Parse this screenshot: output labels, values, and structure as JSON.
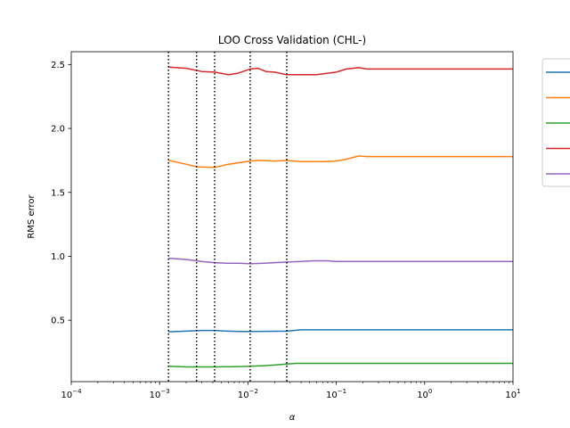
{
  "chart_data": {
    "type": "line",
    "title": "LOO Cross Validation (CHL-)",
    "xlabel": "α",
    "ylabel": "RMS error",
    "xscale": "log",
    "xlim": [
      0.0001,
      10
    ],
    "ylim": [
      0.02,
      2.6
    ],
    "x_ticks": [
      {
        "value": 0.0001,
        "base": "10",
        "exp": "−4"
      },
      {
        "value": 0.001,
        "base": "10",
        "exp": "−3"
      },
      {
        "value": 0.01,
        "base": "10",
        "exp": "−2"
      },
      {
        "value": 0.1,
        "base": "10",
        "exp": "−1"
      },
      {
        "value": 1,
        "base": "10",
        "exp": "0"
      },
      {
        "value": 10,
        "base": "10",
        "exp": "1"
      }
    ],
    "y_ticks": [
      {
        "value": 0.5,
        "label": "0.5"
      },
      {
        "value": 1.0,
        "label": "1.0"
      },
      {
        "value": 1.5,
        "label": "1.5"
      },
      {
        "value": 2.0,
        "label": "2.0"
      },
      {
        "value": 2.5,
        "label": "2.5"
      }
    ],
    "grid": false,
    "legend_position": "outside-right",
    "vlines": [
      0.00126,
      0.00262,
      0.0042,
      0.0106,
      0.0275
    ],
    "series": [
      {
        "color": "#1f77b4",
        "x": [
          0.00126,
          0.002,
          0.003,
          0.0042,
          0.006,
          0.008,
          0.0106,
          0.015,
          0.0275,
          0.04,
          0.1,
          0.5,
          10
        ],
        "y": [
          0.41,
          0.415,
          0.42,
          0.42,
          0.415,
          0.412,
          0.412,
          0.413,
          0.415,
          0.425,
          0.425,
          0.425,
          0.425
        ]
      },
      {
        "color": "#ff7f0e",
        "x": [
          0.00126,
          0.002,
          0.00262,
          0.0042,
          0.006,
          0.0106,
          0.013,
          0.02,
          0.0275,
          0.04,
          0.07,
          0.1,
          0.13,
          0.18,
          0.22,
          0.5,
          10
        ],
        "y": [
          1.75,
          1.72,
          1.7,
          1.695,
          1.72,
          1.745,
          1.75,
          1.745,
          1.75,
          1.74,
          1.74,
          1.745,
          1.76,
          1.785,
          1.78,
          1.78,
          1.78
        ]
      },
      {
        "color": "#2ca02c",
        "x": [
          0.00126,
          0.002,
          0.0042,
          0.008,
          0.0106,
          0.015,
          0.02,
          0.0275,
          0.035,
          0.04,
          0.1,
          1,
          10
        ],
        "y": [
          0.14,
          0.135,
          0.135,
          0.138,
          0.14,
          0.145,
          0.15,
          0.158,
          0.163,
          0.163,
          0.163,
          0.163,
          0.163
        ]
      },
      {
        "color": "#d62728",
        "x": [
          0.00126,
          0.002,
          0.003,
          0.0042,
          0.006,
          0.0075,
          0.0106,
          0.013,
          0.016,
          0.02,
          0.0275,
          0.04,
          0.06,
          0.1,
          0.13,
          0.18,
          0.22,
          1,
          10
        ],
        "y": [
          2.48,
          2.47,
          2.445,
          2.44,
          2.42,
          2.43,
          2.465,
          2.47,
          2.445,
          2.44,
          2.42,
          2.42,
          2.42,
          2.44,
          2.465,
          2.475,
          2.465,
          2.465,
          2.465
        ]
      },
      {
        "color": "#9467bd",
        "x": [
          0.00126,
          0.002,
          0.003,
          0.0042,
          0.006,
          0.008,
          0.0106,
          0.015,
          0.0275,
          0.04,
          0.055,
          0.08,
          0.1,
          1,
          10
        ],
        "y": [
          0.985,
          0.975,
          0.96,
          0.95,
          0.945,
          0.945,
          0.942,
          0.945,
          0.955,
          0.96,
          0.965,
          0.965,
          0.96,
          0.96,
          0.96
        ]
      }
    ]
  }
}
